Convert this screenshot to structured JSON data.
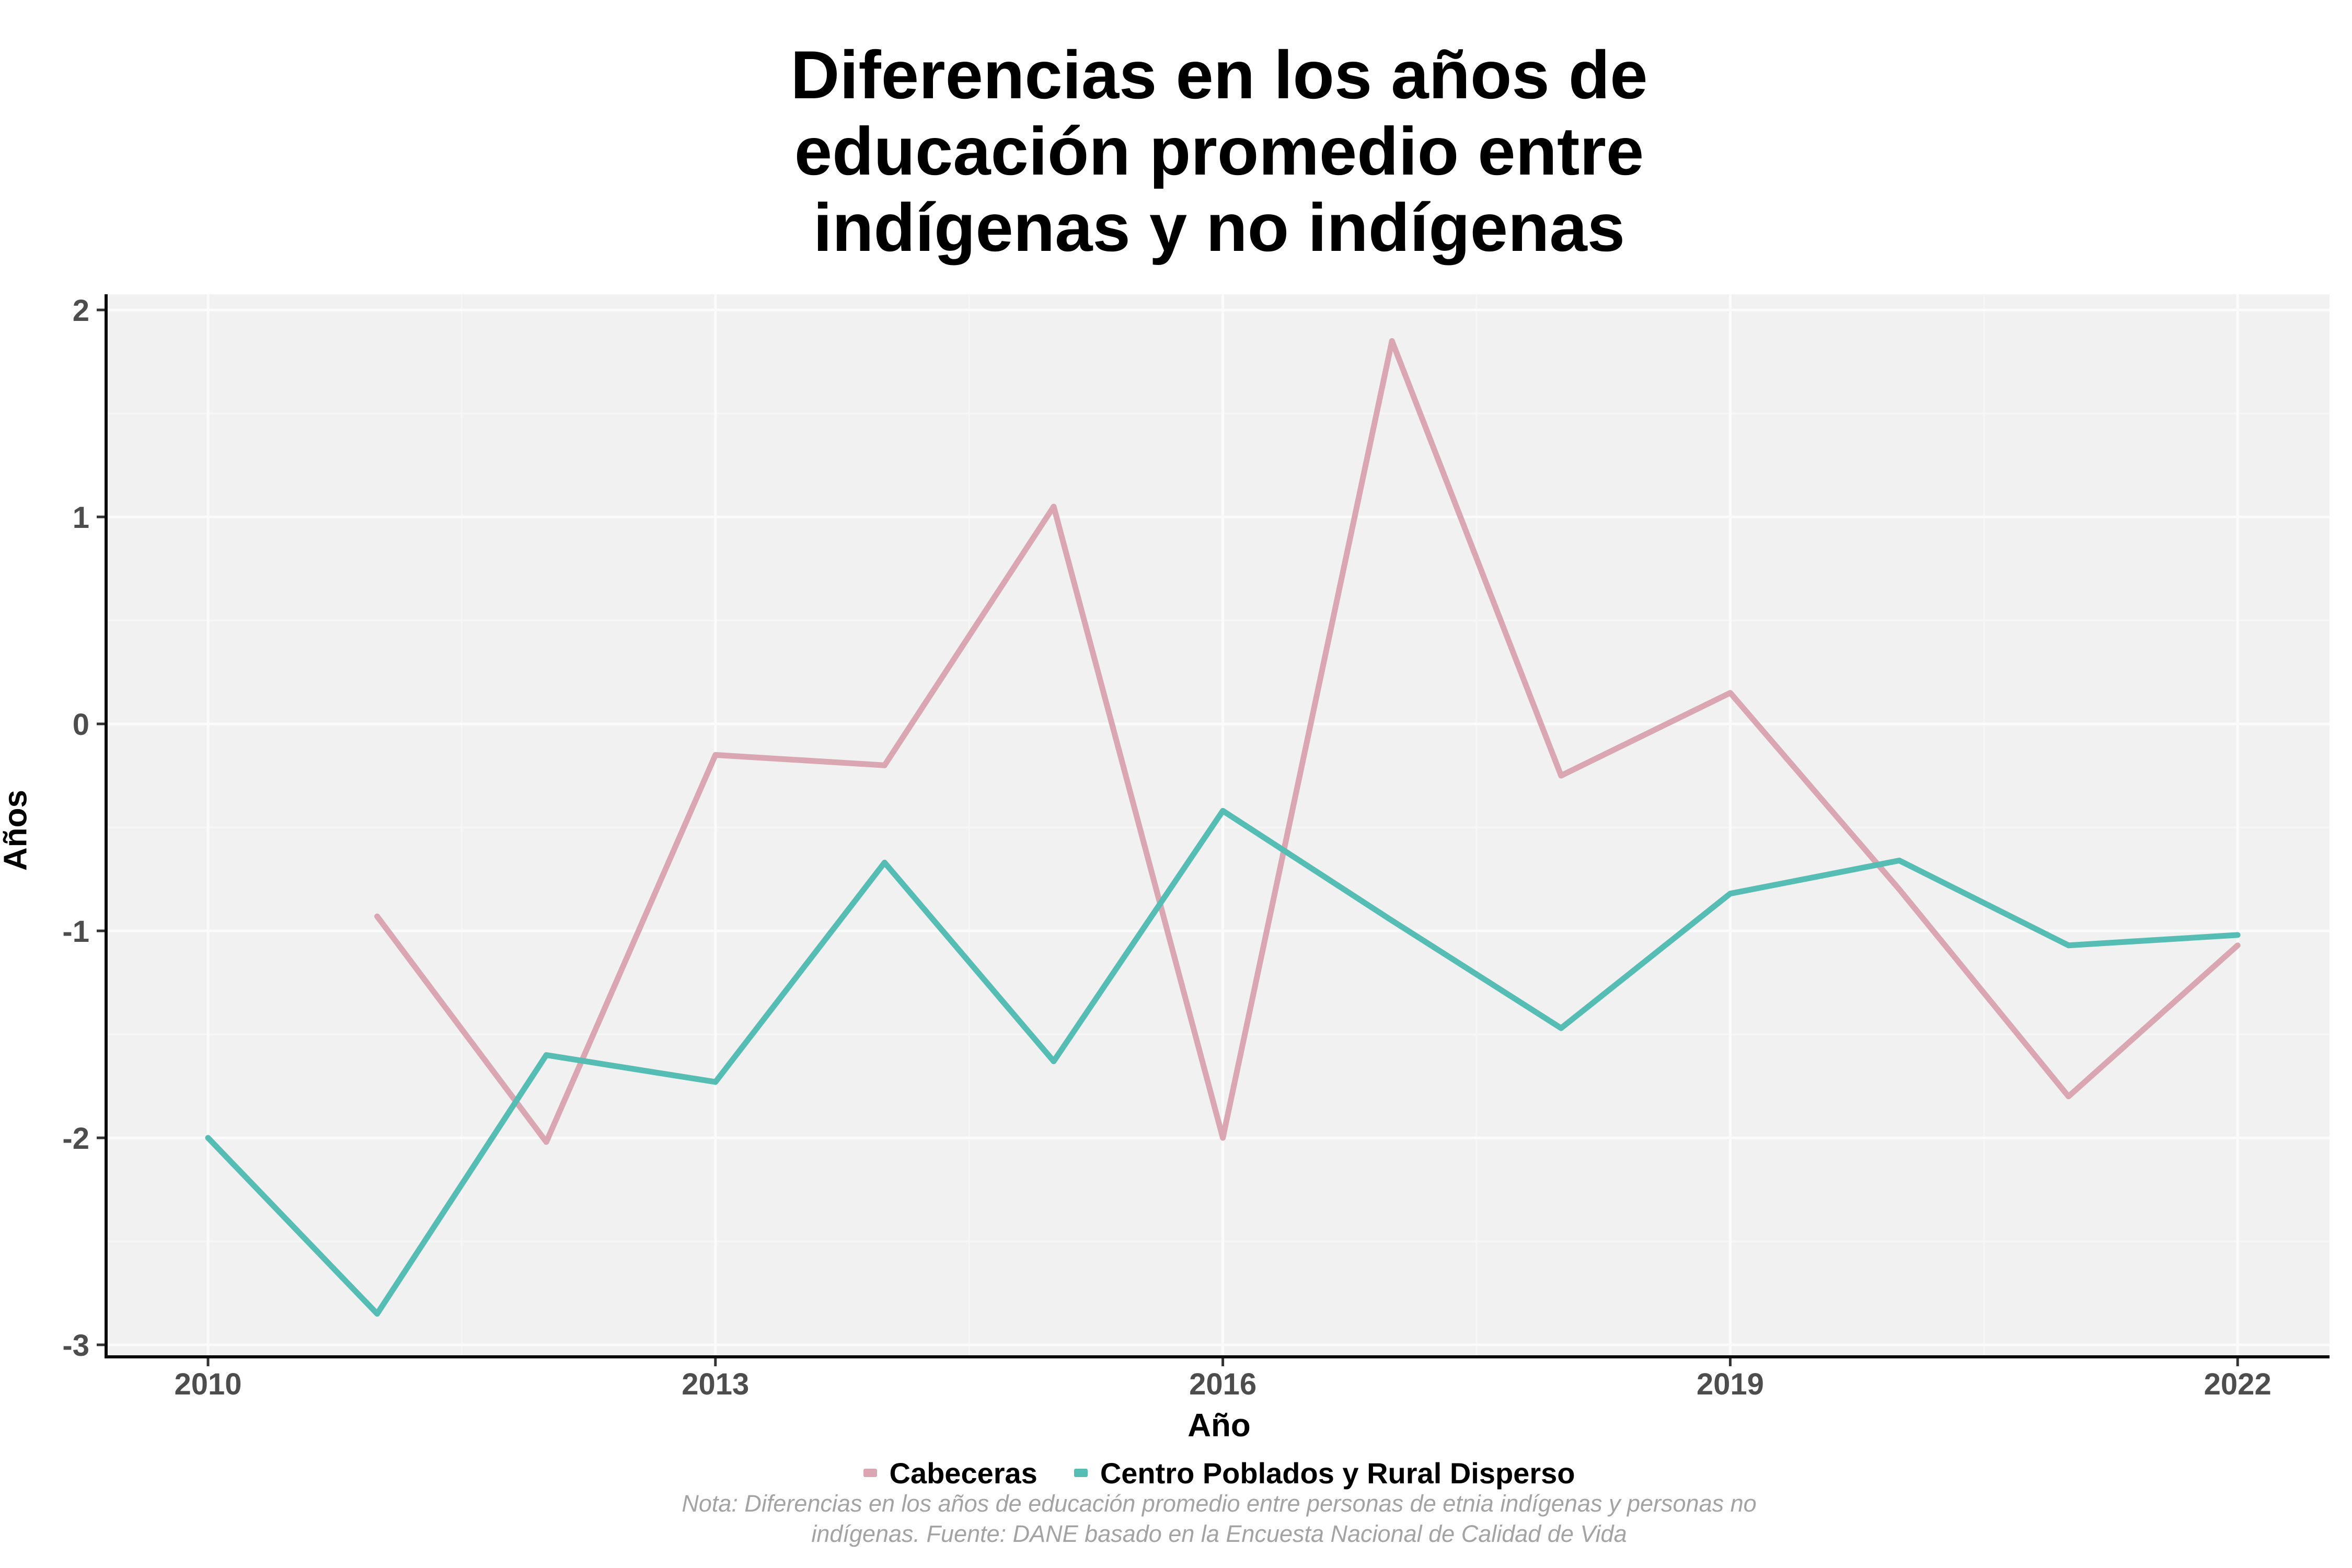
{
  "chart_data": {
    "type": "line",
    "title": "Diferencias en los años de\neducación promedio entre\nindígenas y no indígenas",
    "xlabel": "Año",
    "ylabel": "Años",
    "x": [
      2010,
      2011,
      2012,
      2013,
      2014,
      2015,
      2016,
      2017,
      2018,
      2019,
      2020,
      2021,
      2022
    ],
    "series": [
      {
        "name": "Cabeceras",
        "color": "#D9A6B2",
        "values": [
          null,
          -0.93,
          -2.02,
          -0.15,
          -0.2,
          1.05,
          -2.0,
          1.85,
          -0.25,
          0.15,
          -0.8,
          -1.8,
          -1.07
        ]
      },
      {
        "name": "Centro Poblados y Rural Disperso",
        "color": "#56BDB4",
        "values": [
          -2.0,
          -2.85,
          -1.6,
          -1.73,
          -0.67,
          -1.63,
          -0.42,
          -0.95,
          -1.47,
          -0.82,
          -0.66,
          -1.07,
          -1.02
        ]
      }
    ],
    "xticks": [
      2010,
      2013,
      2016,
      2019,
      2022
    ],
    "yticks": [
      2,
      1,
      0,
      -1,
      -2,
      -3
    ],
    "xlim": [
      2009.4,
      2022.6
    ],
    "ylim": [
      -3.06,
      2.07
    ],
    "grid": true,
    "legend_position": "bottom",
    "note": "Nota: Diferencias en los años de educación promedio entre personas de etnia indígenas y personas no\nindígenas. Fuente: DANE basado en la Encuesta Nacional de Calidad de Vida"
  },
  "styles": {
    "panel_background": "#F1F1F1",
    "grid_major_color": "#FBFBFB",
    "grid_minor_color": "#F6F6F6",
    "axis_line_color": "#0A0A0A",
    "tick_mark_color": "#333333",
    "tick_label_color": "#4D4D4D",
    "note_color": "#A3A3A3"
  }
}
